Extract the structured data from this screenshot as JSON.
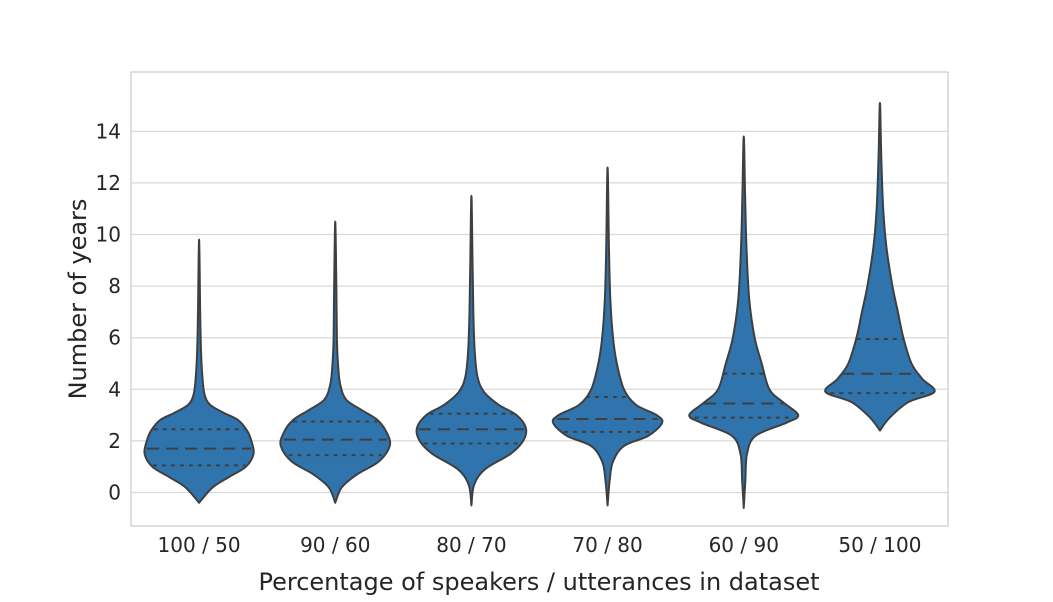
{
  "chart_data": {
    "type": "violin",
    "title": "",
    "xlabel": "Percentage of speakers / utterances in dataset",
    "ylabel": "Number of years",
    "ylim": [
      -1.3,
      16.3
    ],
    "yticks": [
      0,
      2,
      4,
      6,
      8,
      10,
      12,
      14
    ],
    "grid": true,
    "color": "#2f74ad",
    "categories": [
      "100 / 50",
      "90 / 60",
      "80 / 70",
      "70 / 80",
      "60 / 90",
      "50 / 100"
    ],
    "violins": [
      {
        "label": "100 / 50",
        "min": -0.4,
        "max": 9.8,
        "q1": 1.05,
        "median": 1.7,
        "q3": 2.45,
        "profile": [
          [
            -0.4,
            0.0
          ],
          [
            0.2,
            0.25
          ],
          [
            0.6,
            0.55
          ],
          [
            1.0,
            0.86
          ],
          [
            1.5,
            1.0
          ],
          [
            2.0,
            0.96
          ],
          [
            2.4,
            0.88
          ],
          [
            2.8,
            0.72
          ],
          [
            3.1,
            0.44
          ],
          [
            3.4,
            0.2
          ],
          [
            3.8,
            0.1
          ],
          [
            4.5,
            0.06
          ],
          [
            5.5,
            0.035
          ],
          [
            7.0,
            0.02
          ],
          [
            9.8,
            0.0
          ]
        ]
      },
      {
        "label": "90 / 60",
        "min": -0.4,
        "max": 10.5,
        "q1": 1.45,
        "median": 2.05,
        "q3": 2.75,
        "profile": [
          [
            -0.4,
            0.0
          ],
          [
            0.2,
            0.12
          ],
          [
            0.7,
            0.4
          ],
          [
            1.2,
            0.8
          ],
          [
            1.8,
            1.0
          ],
          [
            2.3,
            0.95
          ],
          [
            2.8,
            0.78
          ],
          [
            3.2,
            0.48
          ],
          [
            3.6,
            0.2
          ],
          [
            4.2,
            0.09
          ],
          [
            5.0,
            0.05
          ],
          [
            6.0,
            0.03
          ],
          [
            8.0,
            0.02
          ],
          [
            10.5,
            0.0
          ]
        ]
      },
      {
        "label": "80 / 70",
        "min": -0.5,
        "max": 11.5,
        "q1": 1.9,
        "median": 2.45,
        "q3": 3.05,
        "profile": [
          [
            -0.5,
            0.0
          ],
          [
            0.3,
            0.05
          ],
          [
            0.9,
            0.25
          ],
          [
            1.5,
            0.72
          ],
          [
            2.0,
            0.95
          ],
          [
            2.5,
            1.0
          ],
          [
            3.0,
            0.83
          ],
          [
            3.4,
            0.5
          ],
          [
            3.9,
            0.23
          ],
          [
            4.5,
            0.11
          ],
          [
            5.5,
            0.06
          ],
          [
            7.0,
            0.035
          ],
          [
            9.0,
            0.02
          ],
          [
            11.5,
            0.0
          ]
        ]
      },
      {
        "label": "70 / 80",
        "min": -0.5,
        "max": 12.6,
        "q1": 2.35,
        "median": 2.85,
        "q3": 3.7,
        "profile": [
          [
            -0.5,
            0.0
          ],
          [
            0.5,
            0.04
          ],
          [
            1.2,
            0.1
          ],
          [
            1.8,
            0.3
          ],
          [
            2.2,
            0.75
          ],
          [
            2.7,
            1.0
          ],
          [
            3.0,
            0.9
          ],
          [
            3.4,
            0.52
          ],
          [
            4.0,
            0.3
          ],
          [
            5.0,
            0.17
          ],
          [
            6.0,
            0.1
          ],
          [
            7.5,
            0.05
          ],
          [
            9.5,
            0.025
          ],
          [
            12.6,
            0.0
          ]
        ]
      },
      {
        "label": "60 / 90",
        "min": -0.6,
        "max": 13.8,
        "q1": 2.9,
        "median": 3.45,
        "q3": 4.6,
        "profile": [
          [
            -0.6,
            0.0
          ],
          [
            0.5,
            0.03
          ],
          [
            1.5,
            0.06
          ],
          [
            2.2,
            0.22
          ],
          [
            2.7,
            0.78
          ],
          [
            3.0,
            1.0
          ],
          [
            3.5,
            0.72
          ],
          [
            4.0,
            0.47
          ],
          [
            5.0,
            0.33
          ],
          [
            6.0,
            0.2
          ],
          [
            7.5,
            0.1
          ],
          [
            9.5,
            0.05
          ],
          [
            11.5,
            0.025
          ],
          [
            13.8,
            0.0
          ]
        ]
      },
      {
        "label": "50 / 100",
        "min": 2.4,
        "max": 15.1,
        "q1": 3.85,
        "median": 4.6,
        "q3": 5.95,
        "profile": [
          [
            2.4,
            0.0
          ],
          [
            2.9,
            0.18
          ],
          [
            3.5,
            0.52
          ],
          [
            3.9,
            1.0
          ],
          [
            4.4,
            0.78
          ],
          [
            5.0,
            0.58
          ],
          [
            6.0,
            0.43
          ],
          [
            7.0,
            0.33
          ],
          [
            8.0,
            0.23
          ],
          [
            9.5,
            0.12
          ],
          [
            11.0,
            0.06
          ],
          [
            13.0,
            0.025
          ],
          [
            15.1,
            0.0
          ]
        ]
      }
    ]
  }
}
